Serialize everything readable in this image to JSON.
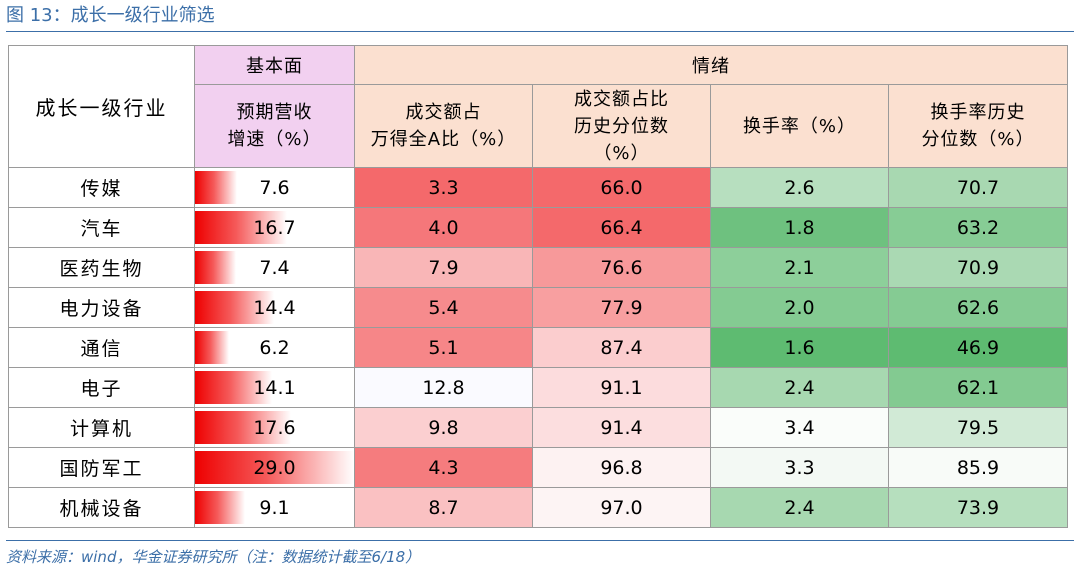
{
  "figure": {
    "title": "图 13：成长一级行业筛选"
  },
  "table": {
    "industry_header": "成长一级行业",
    "group_fundamental": "基本面",
    "group_sentiment": "情绪",
    "col_growth": [
      "预期营收",
      "增速（%）"
    ],
    "col_turnover_share": [
      "成交额占",
      "万得全A比（%）"
    ],
    "col_turnover_pct": [
      "成交额占比",
      "历史分位数",
      "（%）"
    ],
    "col_turnover_rate": [
      "换手率（%）"
    ],
    "col_turnover_rate_pct": [
      "换手率历史",
      "分位数（%）"
    ],
    "growth_max": 29.0,
    "rows": [
      {
        "industry": "传媒",
        "growth": "7.6",
        "share": "3.3",
        "share_pct": "66.0",
        "rate": "2.6",
        "rate_pct": "70.7",
        "share_bg": "#f4696b",
        "share_pct_bg": "#f4696b",
        "rate_bg": "#b7dfbf",
        "rate_pct_bg": "#a8d8b1"
      },
      {
        "industry": "汽车",
        "growth": "16.7",
        "share": "4.0",
        "share_pct": "66.4",
        "rate": "1.8",
        "rate_pct": "63.2",
        "share_bg": "#f5777a",
        "share_pct_bg": "#f4696b",
        "rate_bg": "#6ec17f",
        "rate_pct_bg": "#87cc95"
      },
      {
        "industry": "医药生物",
        "growth": "7.4",
        "share": "7.9",
        "share_pct": "76.6",
        "rate": "2.1",
        "rate_pct": "70.9",
        "share_bg": "#f9b6b7",
        "share_pct_bg": "#f7999a",
        "rate_bg": "#8dcf9a",
        "rate_pct_bg": "#aad9b3"
      },
      {
        "industry": "电力设备",
        "growth": "14.4",
        "share": "5.4",
        "share_pct": "77.9",
        "rate": "2.0",
        "rate_pct": "62.6",
        "share_bg": "#f68b8d",
        "share_pct_bg": "#f89fa0",
        "rate_bg": "#84cb92",
        "rate_pct_bg": "#85cb93"
      },
      {
        "industry": "通信",
        "growth": "6.2",
        "share": "5.1",
        "share_pct": "87.4",
        "rate": "1.6",
        "rate_pct": "46.9",
        "share_bg": "#f68688",
        "share_pct_bg": "#fbcdce",
        "rate_bg": "#5ebb71",
        "rate_pct_bg": "#5ebb71"
      },
      {
        "industry": "电子",
        "growth": "14.1",
        "share": "12.8",
        "share_pct": "91.1",
        "rate": "2.4",
        "rate_pct": "62.1",
        "share_bg": "#fafaff",
        "share_pct_bg": "#fcdcdd",
        "rate_bg": "#a7d8b0",
        "rate_pct_bg": "#83ca91"
      },
      {
        "industry": "计算机",
        "growth": "17.6",
        "share": "9.8",
        "share_pct": "91.4",
        "rate": "3.4",
        "rate_pct": "79.5",
        "share_bg": "#fbcfd0",
        "share_pct_bg": "#fcdedf",
        "rate_bg": "#fafdfa",
        "rate_pct_bg": "#d1ead6"
      },
      {
        "industry": "国防军工",
        "growth": "29.0",
        "share": "4.3",
        "share_pct": "96.8",
        "rate": "3.3",
        "rate_pct": "85.9",
        "share_bg": "#f57c7e",
        "share_pct_bg": "#fdf2f2",
        "rate_bg": "#f3f9f4",
        "rate_pct_bg": "#f8fbf8"
      },
      {
        "industry": "机械设备",
        "growth": "9.1",
        "share": "8.7",
        "share_pct": "97.0",
        "rate": "2.4",
        "rate_pct": "73.9",
        "share_bg": "#fac1c2",
        "share_pct_bg": "#fdf4f4",
        "rate_bg": "#a7d8b0",
        "rate_pct_bg": "#b6dfbe"
      }
    ]
  },
  "source": "资料来源：wind，华金证券研究所（注：数据统计截至6/18）"
}
